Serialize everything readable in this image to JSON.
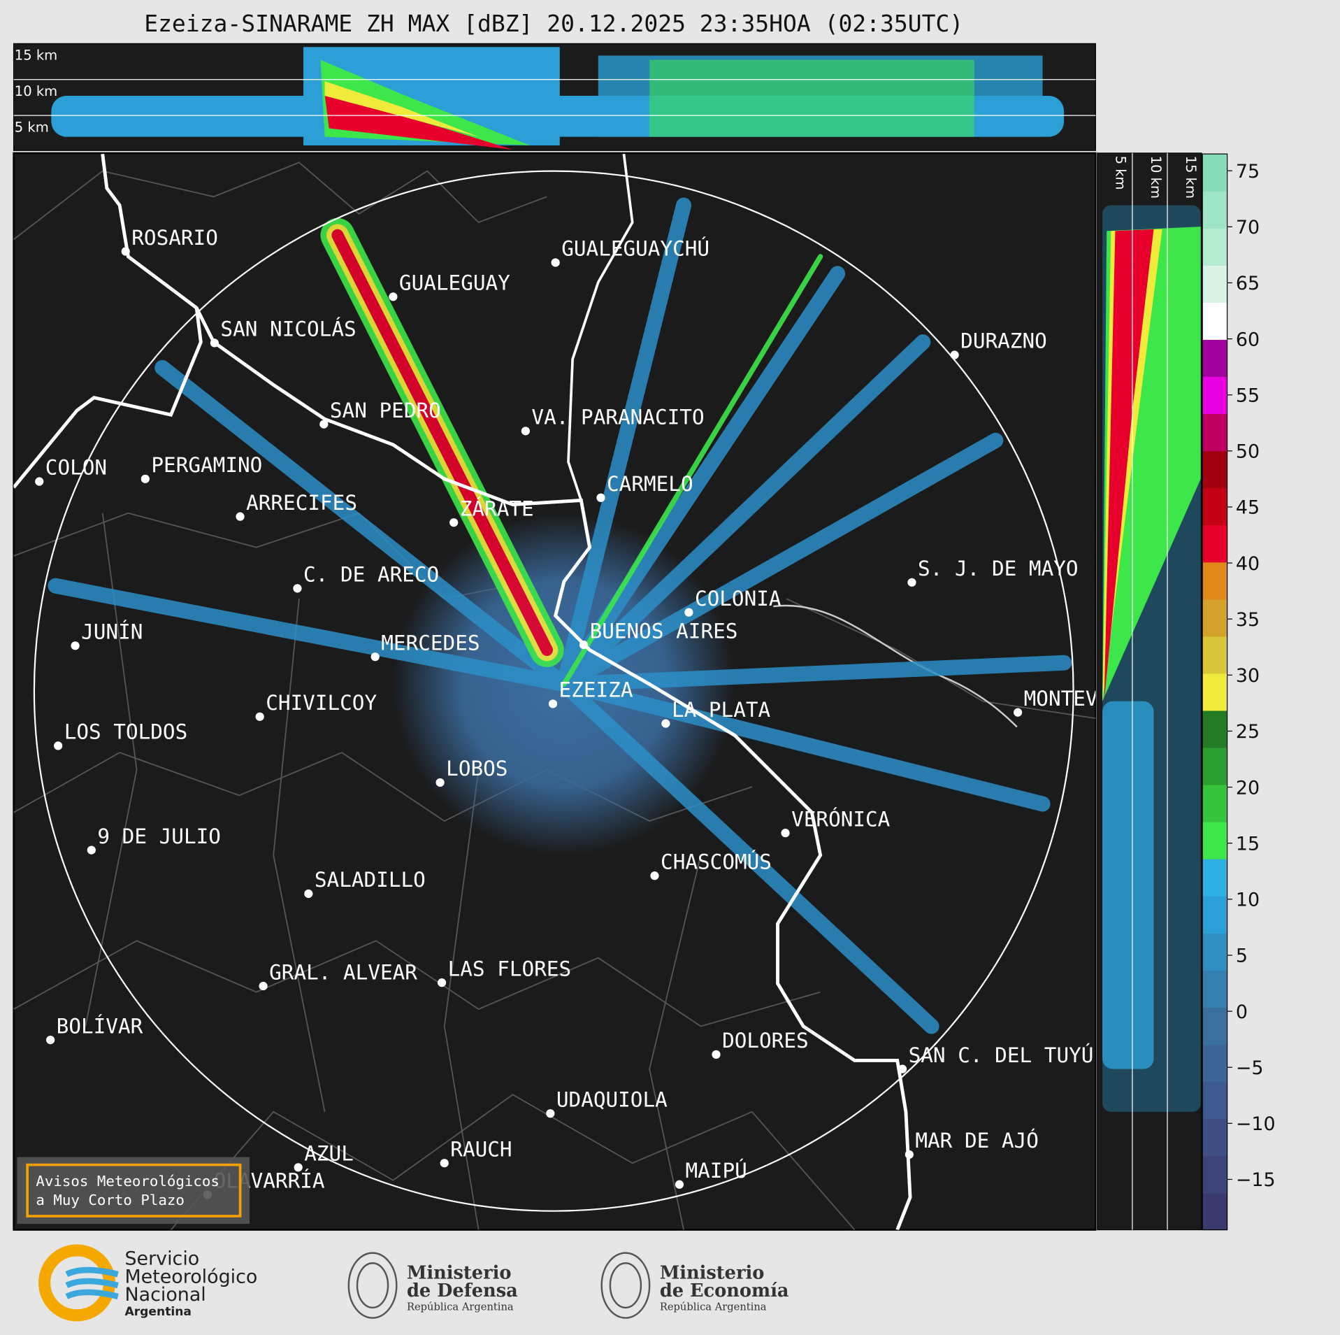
{
  "title": "Ezeiza-SINARAME ZH MAX [dBZ] 20.12.2025 23:35HOA (02:35UTC)",
  "top_panel": {
    "height_labels": [
      "15 km",
      "10 km",
      "5 km"
    ]
  },
  "side_panel": {
    "height_labels": [
      "5 km",
      "10 km",
      "15 km"
    ]
  },
  "cities": [
    "ROSARIO",
    "GUALEGUAYCHÚ",
    "GUALEGUAY",
    "SAN NICOLÁS",
    "DURAZNO",
    "SAN PEDRO",
    "VA. PARANACITO",
    "COLON",
    "PERGAMINO",
    "CARMELO",
    "ARRECIFES",
    "ZÁRATE",
    "S. J. DE MAYO",
    "C. DE ARECO",
    "COLONIA",
    "BUENOS AIRES",
    "JUNÍN",
    "MERCEDES",
    "EZEIZA",
    "MONTEVIDEO",
    "CHIVILCOY",
    "LA PLATA",
    "LOS TOLDOS",
    "LOBOS",
    "VERÓNICA",
    "9 DE JULIO",
    "CHASCOMÚS",
    "SALADILLO",
    "GRAL. ALVEAR",
    "LAS FLORES",
    "BOLÍVAR",
    "DOLORES",
    "SAN C. DEL TUYÚ",
    "UDAQUIOLA",
    "MAR DE AJÓ",
    "AZUL",
    "RAUCH",
    "OLAVARRÍA",
    "MAIPÚ"
  ],
  "warning_box": {
    "lines": [
      "Avisos Meteorológicos",
      "a Muy Corto Plazo"
    ]
  },
  "colorbar": {
    "ylim": [
      -19.5,
      76.5
    ],
    "yticks": [
      {
        "value": -15,
        "label": "−15"
      },
      {
        "value": -10,
        "label": "−10"
      },
      {
        "value": -5,
        "label": "−5"
      },
      0,
      5,
      10,
      15,
      20,
      25,
      30,
      35,
      40,
      45,
      50,
      55,
      60,
      65,
      70,
      75
    ],
    "colors": [
      "#3a3a6e",
      "#3d4478",
      "#3f4f84",
      "#3f5a8e",
      "#3d6596",
      "#3a709c",
      "#3580b0",
      "#2f8fc0",
      "#2ca0d6",
      "#2eb0e2",
      "#3de64a",
      "#36c43c",
      "#2a9e2e",
      "#237a25",
      "#f0ea3a",
      "#d8c638",
      "#d4a22a",
      "#e08818",
      "#e8002c",
      "#c40016",
      "#a00010",
      "#c00060",
      "#e800e0",
      "#a0009e",
      "#ffffff",
      "#d8f3e4",
      "#b4ecd2",
      "#9ee4c6",
      "#86dcb8"
    ]
  },
  "logos": [
    {
      "lines": [
        "Servicio",
        "Meteorológico",
        "Nacional",
        "Argentina"
      ]
    },
    {
      "lines": [
        "Ministerio",
        "de Defensa",
        "República Argentina"
      ]
    },
    {
      "lines": [
        "Ministerio",
        "de Economía",
        "República Argentina"
      ]
    }
  ]
}
